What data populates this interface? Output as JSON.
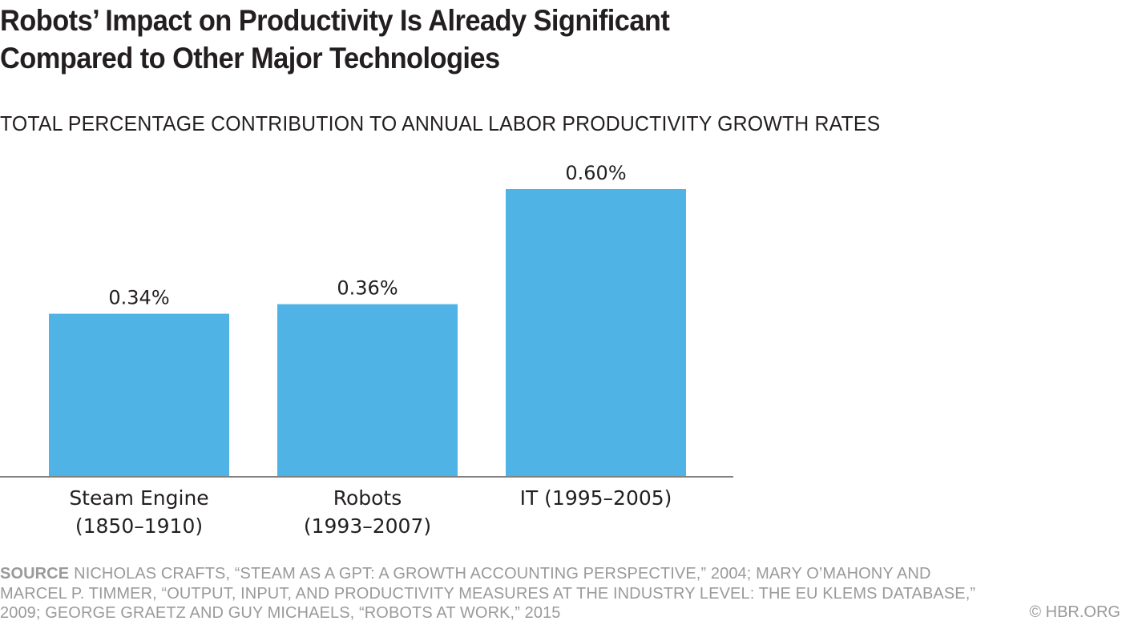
{
  "header": {
    "title_line1": "Robots’ Impact on Productivity Is Already Significant",
    "title_line2": "Compared to Other Major Technologies",
    "subtitle": "TOTAL PERCENTAGE CONTRIBUTION TO ANNUAL LABOR PRODUCTIVITY GROWTH RATES"
  },
  "chart_data": {
    "type": "bar",
    "title": "Robots’ Impact on Productivity Is Already Significant Compared to Other Major Technologies",
    "subtitle": "TOTAL PERCENTAGE CONTRIBUTION TO ANNUAL LABOR PRODUCTIVITY GROWTH RATES",
    "xlabel": "",
    "ylabel": "",
    "categories": [
      [
        "Steam Engine",
        "(1850–1910)"
      ],
      [
        "Robots",
        "(1993–2007)"
      ],
      [
        "IT (1995–2005)"
      ]
    ],
    "values": [
      0.34,
      0.36,
      0.6
    ],
    "value_labels": [
      "0.34%",
      "0.36%",
      "0.60%"
    ],
    "unit": "%",
    "ylim": [
      0,
      0.6
    ],
    "grid": false,
    "legend": "none",
    "bar_color": "#4fb4e5",
    "axis_color": "#808080"
  },
  "footer": {
    "source_key": "SOURCE",
    "source_text": "NICHOLAS CRAFTS, “STEAM AS A GPT: A GROWTH ACCOUNTING PERSPECTIVE,” 2004; MARY O’MAHONY AND MARCEL P. TIMMER, “OUTPUT, INPUT, AND PRODUCTIVITY MEASURES AT THE INDUSTRY LEVEL: THE EU KLEMS DATABASE,” 2009; GEORGE GRAETZ AND GUY MICHAELS, “ROBOTS AT WORK,” 2015",
    "copyright": "© HBR.ORG"
  }
}
